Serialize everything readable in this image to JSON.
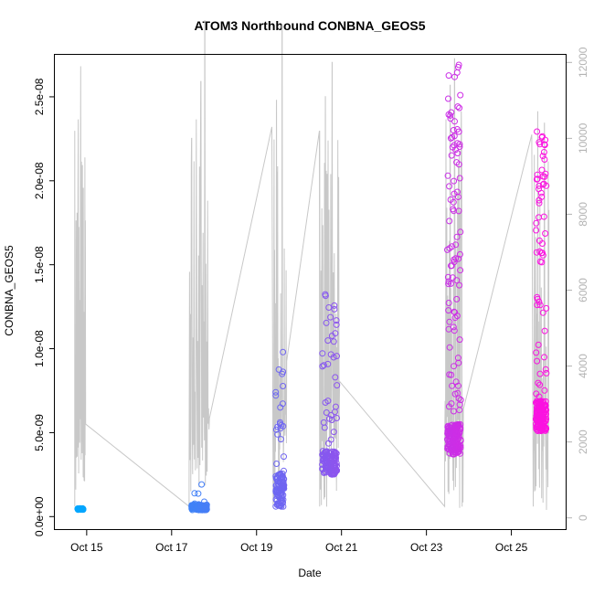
{
  "chart_data": {
    "type": "scatter",
    "title": "ATOM3 Northbound CONBNA_GEOS5",
    "xlabel": "Date",
    "ylabel": "CONBNA_GEOS5",
    "x_ticks": [
      "Oct 15",
      "Oct 17",
      "Oct 19",
      "Oct 21",
      "Oct 23",
      "Oct 25"
    ],
    "x_tick_days": [
      15,
      17,
      19,
      21,
      23,
      25
    ],
    "xlim_days": [
      14.25,
      26.3
    ],
    "y_ticks": [
      "0.0e+00",
      "5.0e-09",
      "1.0e-08",
      "1.5e-08",
      "2.0e-08",
      "2.5e-08"
    ],
    "y_tick_values": [
      0,
      5e-09,
      1e-08,
      1.5e-08,
      2e-08,
      2.5e-08
    ],
    "ylim": [
      -8e-10,
      2.75e-08
    ],
    "secondary_axis": {
      "label": "",
      "ticks": [
        "0",
        "2000",
        "4000",
        "6000",
        "8000",
        "10000",
        "12000"
      ],
      "tick_values": [
        0,
        2000,
        4000,
        6000,
        8000,
        10000,
        12000
      ],
      "range": [
        -320,
        12200
      ],
      "color": "#b3b3b3"
    },
    "grid": false,
    "legend": "none",
    "colors": {
      "line": "#c8c8c8",
      "points_start": "#00a8ff",
      "points_end": "#ff10e0"
    },
    "clusters": [
      {
        "day_center": 14.85,
        "day_width": 0.14,
        "baseline": 4.5e-10,
        "spread": 3.5e-11,
        "peak": 5.5e-10,
        "n": 55,
        "tall_frac": 0.0
      },
      {
        "day_center": 17.65,
        "day_width": 0.36,
        "baseline": 5.5e-10,
        "spread": 1.6e-10,
        "peak": 2e-09,
        "n": 140,
        "tall_frac": 0.05
      },
      {
        "day_center": 19.55,
        "day_width": 0.2,
        "baseline": 1.6e-09,
        "spread": 1e-09,
        "peak": 1e-08,
        "n": 110,
        "tall_frac": 0.22
      },
      {
        "day_center": 20.72,
        "day_width": 0.35,
        "baseline": 3.2e-09,
        "spread": 7e-10,
        "peak": 1.35e-08,
        "n": 160,
        "tall_frac": 0.22
      },
      {
        "day_center": 23.65,
        "day_width": 0.32,
        "baseline": 4.6e-09,
        "spread": 9e-10,
        "peak": 2.7e-08,
        "n": 240,
        "tall_frac": 0.4
      },
      {
        "day_center": 25.7,
        "day_width": 0.25,
        "baseline": 6e-09,
        "spread": 9e-10,
        "peak": 2.3e-08,
        "n": 200,
        "tall_frac": 0.35
      }
    ],
    "altitude_spikes": [
      {
        "day": 14.72,
        "alt": 10200
      },
      {
        "day": 14.8,
        "alt": 10500
      },
      {
        "day": 14.86,
        "alt": 11900
      },
      {
        "day": 17.47,
        "alt": 10000
      },
      {
        "day": 17.58,
        "alt": 10500
      },
      {
        "day": 17.69,
        "alt": 11500
      },
      {
        "day": 17.78,
        "alt": 13100
      },
      {
        "day": 19.36,
        "alt": 10300
      },
      {
        "day": 19.47,
        "alt": 11000
      },
      {
        "day": 19.6,
        "alt": 13000
      },
      {
        "day": 20.48,
        "alt": 10200
      },
      {
        "day": 20.62,
        "alt": 11100
      },
      {
        "day": 20.78,
        "alt": 12000
      },
      {
        "day": 23.46,
        "alt": 10500
      },
      {
        "day": 23.56,
        "alt": 11400
      },
      {
        "day": 23.66,
        "alt": 12100
      },
      {
        "day": 23.82,
        "alt": 10700
      },
      {
        "day": 25.48,
        "alt": 10100
      },
      {
        "day": 25.62,
        "alt": 10700
      },
      {
        "day": 25.78,
        "alt": 10400
      }
    ]
  }
}
